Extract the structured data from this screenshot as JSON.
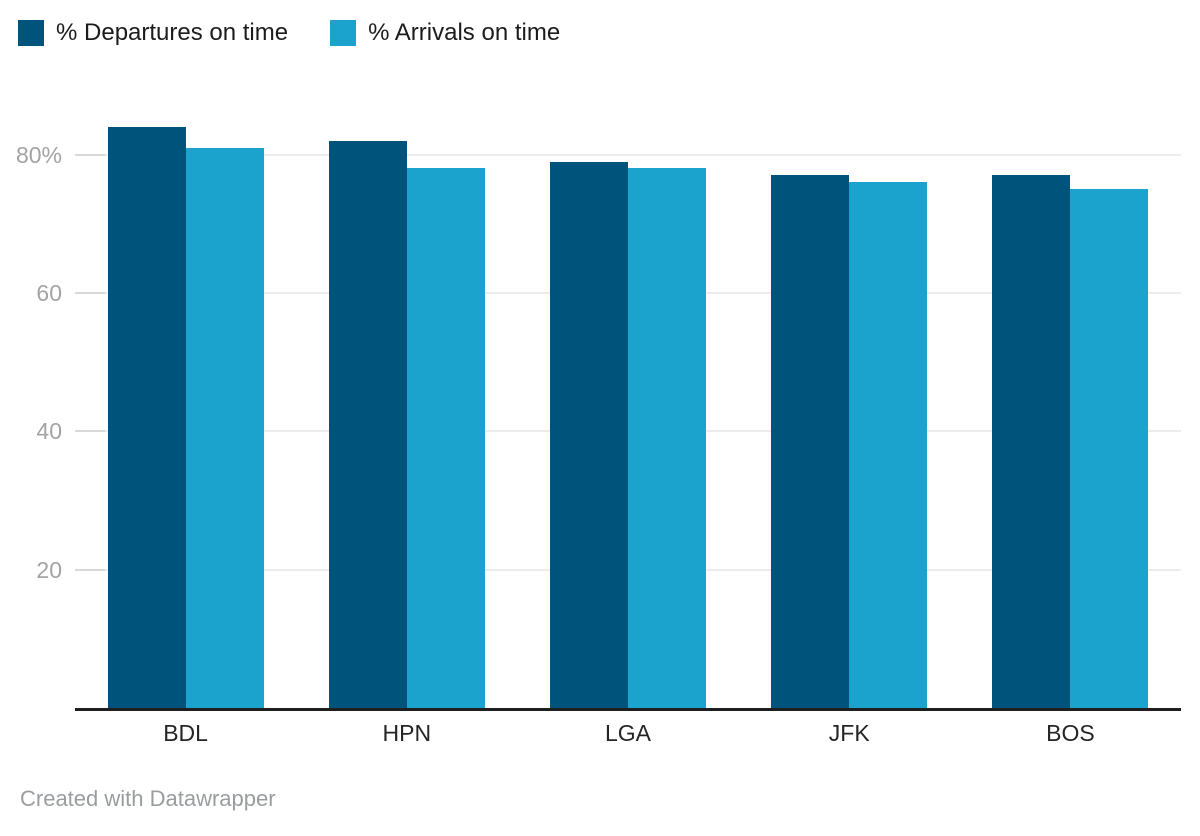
{
  "legend": {
    "items": [
      {
        "key": "departures",
        "label": "% Departures on time",
        "color": "#00547c"
      },
      {
        "key": "arrivals",
        "label": "% Arrivals on time",
        "color": "#1ba3cd"
      }
    ]
  },
  "chart_data": {
    "type": "bar",
    "categories": [
      "BDL",
      "HPN",
      "LGA",
      "JFK",
      "BOS"
    ],
    "series": [
      {
        "key": "departures",
        "name": "% Departures on time",
        "color": "#00547c",
        "values": [
          84,
          82,
          79,
          77,
          77
        ]
      },
      {
        "key": "arrivals",
        "name": "% Arrivals on time",
        "color": "#1ba3cd",
        "values": [
          81,
          78,
          78,
          76,
          75
        ]
      }
    ],
    "ylabel": "",
    "xlabel": "",
    "ylim": [
      0,
      85
    ],
    "yticks": [
      {
        "value": 20,
        "label": "20"
      },
      {
        "value": 40,
        "label": "40"
      },
      {
        "value": 60,
        "label": "60"
      },
      {
        "value": 80,
        "label": "80%"
      }
    ],
    "grid": "horizontal",
    "legend_position": "top-left",
    "axis_color": "#1f1f1f",
    "gridline_color": "#ececec"
  },
  "footer": {
    "credit": "Created with Datawrapper"
  }
}
